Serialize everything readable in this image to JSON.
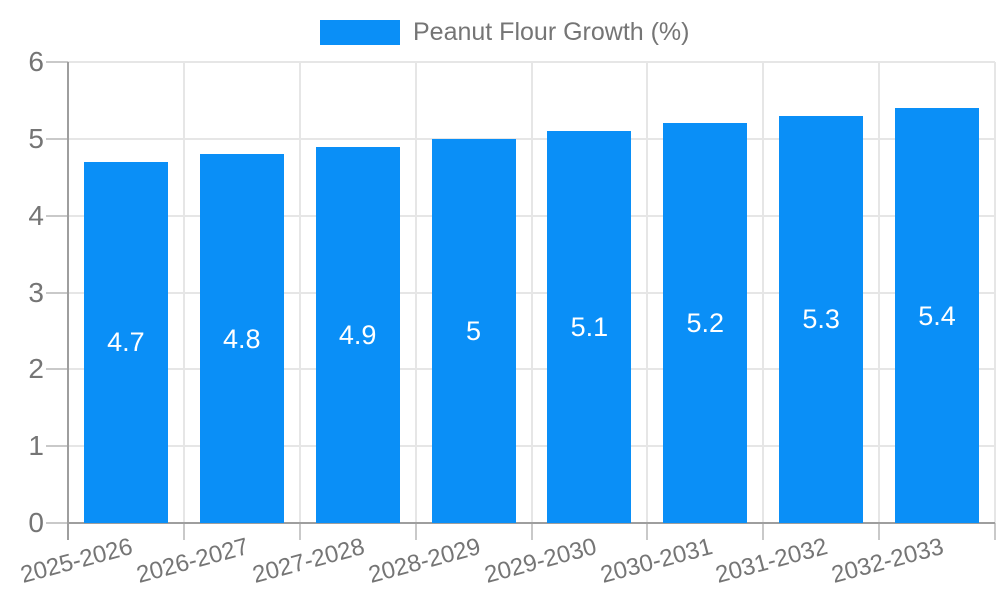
{
  "chart_data": {
    "type": "bar",
    "title": "Peanut Flour Growth (%)",
    "categories": [
      "2025-2026",
      "2026-2027",
      "2027-2028",
      "2028-2029",
      "2029-2030",
      "2030-2031",
      "2031-2032",
      "2032-2033"
    ],
    "values": [
      4.7,
      4.8,
      4.9,
      5,
      5.1,
      5.2,
      5.3,
      5.4
    ],
    "bar_display_labels": [
      "4.7",
      "4.8",
      "4.9",
      "5",
      "5.1",
      "5.2",
      "5.3",
      "5.4"
    ],
    "xlabel": "",
    "ylabel": "",
    "ylim": [
      0,
      6
    ],
    "ytick_labels": [
      "0",
      "1",
      "2",
      "3",
      "4",
      "5",
      "6"
    ],
    "grid": true,
    "legend_position": "top-center",
    "colors": {
      "bar": "#0a8ff7",
      "bar_label_text": "#ffffff",
      "axis_line": "#9e9e9e",
      "gridline": "#e6e6e6",
      "tick": "#c9c9c9",
      "axis_text": "#757575",
      "background": "#ffffff"
    }
  },
  "legend": {
    "label": "Peanut Flour Growth (%)"
  }
}
